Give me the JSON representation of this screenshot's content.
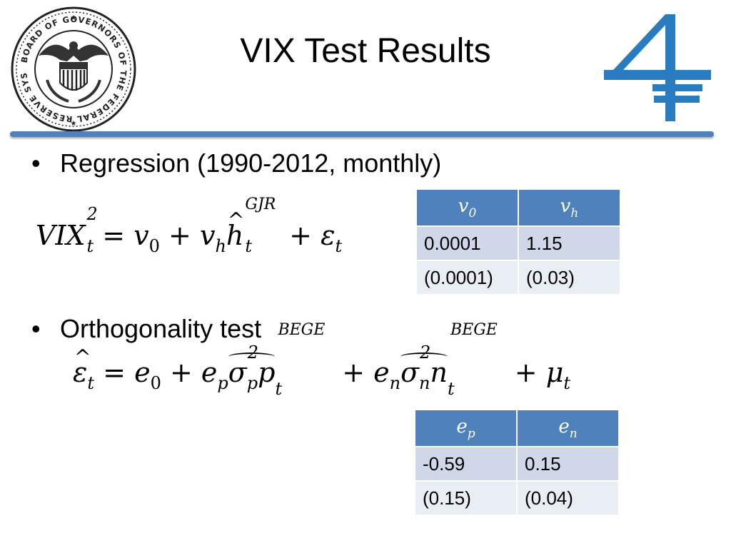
{
  "slide": {
    "title": "VIX Test Results",
    "bullets": [
      "Regression (1990-2012, monthly)",
      "Orthogonality test"
    ],
    "seal_text": "BOARD OF GOVERNORS OF THE FEDERAL RESERVE SYSTEM"
  },
  "equation1": {
    "lhs": "VIX",
    "lhs_sup": "2",
    "lhs_sub": "t",
    "eq": "=",
    "v0": "v",
    "v0_sub": "0",
    "plus1": "+",
    "vh": "v",
    "vh_sub": "h",
    "h": "h",
    "h_sup": "GJR",
    "h_sub": "t",
    "plus2": "+",
    "eps": "ε",
    "eps_sub": "t"
  },
  "equation2": {
    "eps": "ε",
    "eps_sub": "t",
    "eq": "=",
    "e0": "e",
    "e0_sub": "0",
    "plus1": "+",
    "ep": "e",
    "ep_sub": "p",
    "sigp": "σ",
    "sigp_sup": "2",
    "sigp_sub": "p",
    "p": "p",
    "p_sup": "BEGE",
    "p_sub": "t",
    "plus2": "+",
    "en": "e",
    "en_sub": "n",
    "sign": "σ",
    "sign_sup": "2",
    "sign_sub": "n",
    "n": "n",
    "n_sup": "BEGE",
    "n_sub": "t",
    "plus3": "+",
    "mu": "μ",
    "mu_sub": "t"
  },
  "table1": {
    "headers": [
      {
        "base": "v",
        "sub": "0"
      },
      {
        "base": "v",
        "sub": "h"
      }
    ],
    "rows": [
      [
        "0.0001",
        "1.15"
      ],
      [
        "(0.0001)",
        "(0.03)"
      ]
    ]
  },
  "table2": {
    "headers": [
      {
        "base": "e",
        "sub": "p"
      },
      {
        "base": "e",
        "sub": "n"
      }
    ],
    "rows": [
      [
        "-0.59",
        "0.15"
      ],
      [
        "(0.15)",
        "(0.04)"
      ]
    ]
  },
  "colors": {
    "accent": "#4f81bd",
    "row1": "#cfd7e8",
    "row2": "#e9edf4",
    "logo": "#2a7cc0"
  },
  "icons": [
    "federal-reserve-seal-icon",
    "four-logo-icon"
  ]
}
